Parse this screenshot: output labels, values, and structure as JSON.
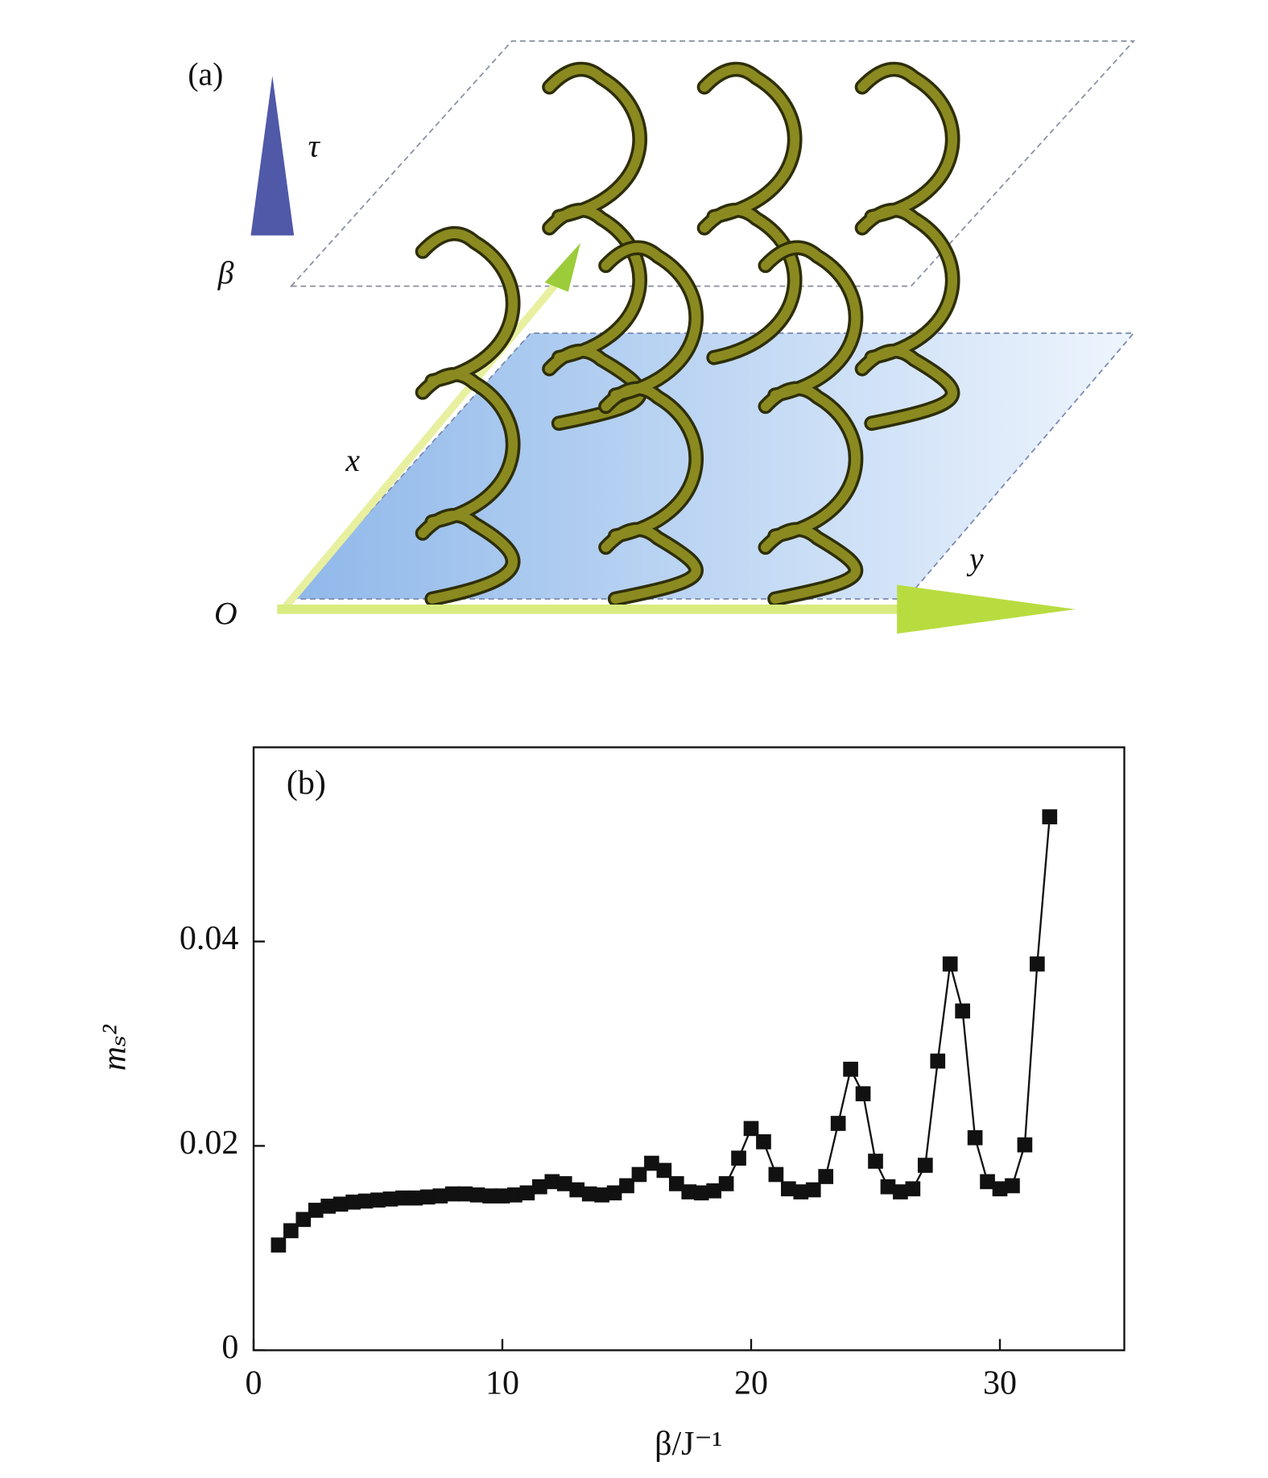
{
  "diagram": {
    "panel_label": "(a)",
    "labels": {
      "tau": "τ",
      "beta": "β",
      "x": "x",
      "y": "y",
      "origin": "O"
    }
  },
  "chart_data": {
    "type": "line",
    "panel_label": "(b)",
    "x_label": "β/J⁻¹",
    "y_label": "mₛ²",
    "x": [
      1,
      1.5,
      2,
      2.5,
      3,
      3.5,
      4,
      4.5,
      5,
      5.5,
      6,
      6.5,
      7,
      7.5,
      8,
      8.5,
      9,
      9.5,
      10,
      10.5,
      11,
      11.5,
      12,
      12.5,
      13,
      13.5,
      14,
      14.5,
      15,
      15.5,
      16,
      16.5,
      17,
      17.5,
      18,
      18.5,
      19,
      19.5,
      20,
      20.5,
      21,
      21.5,
      22,
      22.5,
      23,
      23.5,
      24,
      24.5,
      25,
      25.5,
      26,
      26.5,
      27,
      27.5,
      28,
      28.5,
      29,
      29.5,
      30,
      30.5,
      31,
      31.5,
      32
    ],
    "series": [
      {
        "color": "#111111",
        "values": [
          0.0103,
          0.0117,
          0.0128,
          0.0137,
          0.0141,
          0.0143,
          0.0145,
          0.0146,
          0.0147,
          0.0148,
          0.0149,
          0.0149,
          0.015,
          0.0151,
          0.0153,
          0.0153,
          0.0152,
          0.0151,
          0.0151,
          0.0152,
          0.0154,
          0.016,
          0.0165,
          0.0163,
          0.0157,
          0.0153,
          0.0152,
          0.0154,
          0.0161,
          0.0172,
          0.0183,
          0.0176,
          0.0163,
          0.0155,
          0.0154,
          0.0156,
          0.0163,
          0.0188,
          0.0217,
          0.0204,
          0.0172,
          0.0158,
          0.0155,
          0.0157,
          0.017,
          0.0222,
          0.0275,
          0.0251,
          0.0185,
          0.016,
          0.0155,
          0.0158,
          0.0181,
          0.0283,
          0.0378,
          0.0332,
          0.0208,
          0.0165,
          0.0158,
          0.0161,
          0.0201,
          0.0378,
          0.0522
        ]
      }
    ],
    "xlim": [
      0,
      35
    ],
    "xticks": [
      0,
      10,
      20,
      30
    ],
    "ylim": [
      0,
      0.059
    ],
    "yticks": [
      0,
      0.02,
      0.04
    ]
  }
}
